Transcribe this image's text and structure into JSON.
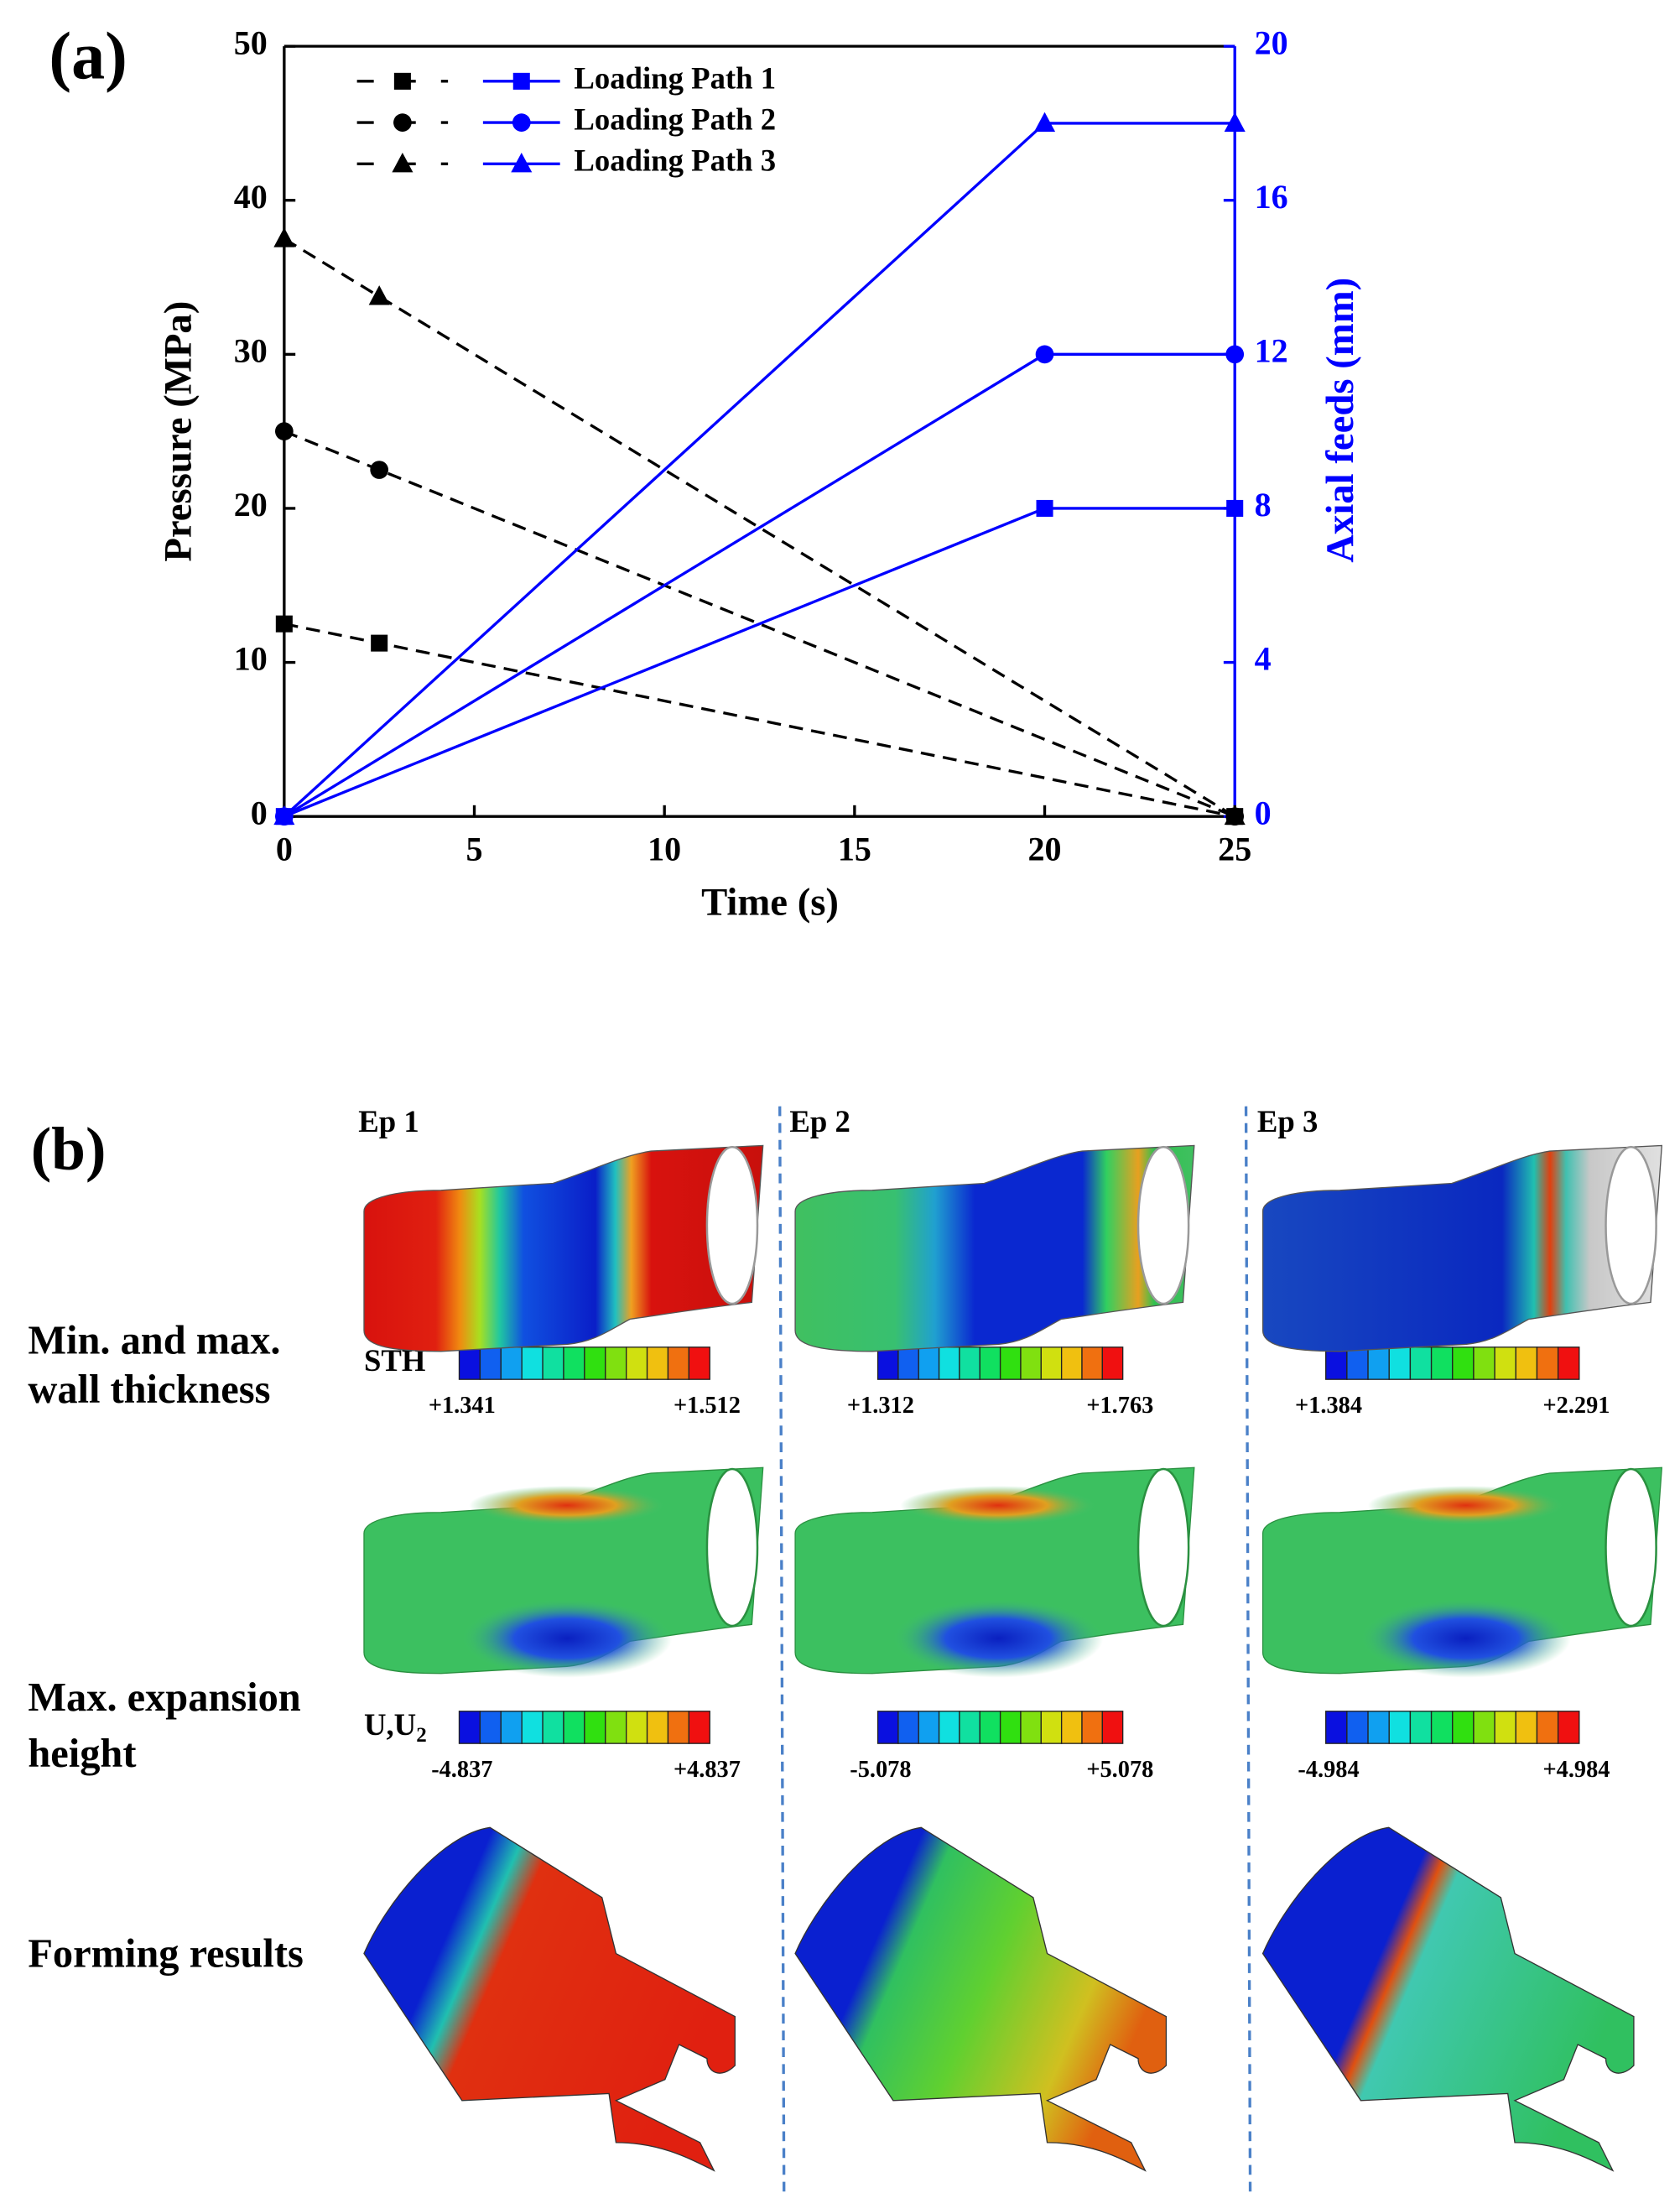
{
  "chart_data": {
    "type": "line",
    "title": "(a)",
    "xlabel": "Time (s)",
    "ylabel": "Pressure (MPa)",
    "y2label": "Axial feeds (mm)",
    "xlim": [
      0,
      25
    ],
    "xticks": [
      0,
      5,
      10,
      15,
      20,
      25
    ],
    "ylim": [
      0,
      50
    ],
    "yticks": [
      0,
      10,
      20,
      30,
      40,
      50
    ],
    "y2lim": [
      0,
      20
    ],
    "y2ticks": [
      0,
      4,
      8,
      12,
      16,
      20
    ],
    "grid": false,
    "legend": "upper left",
    "series": [
      {
        "color": "#000000",
        "line_style": "dashed",
        "marker": "square",
        "x": [
          0,
          2.5,
          25
        ],
        "values": [
          12.5,
          11.25,
          0
        ]
      },
      {
        "color": "#000000",
        "line_style": "dashed",
        "marker": "circle",
        "x": [
          0,
          2.5,
          25
        ],
        "values": [
          25,
          22.5,
          0
        ]
      },
      {
        "color": "#000000",
        "line_style": "dashed",
        "marker": "triangle",
        "x": [
          0,
          2.5,
          25
        ],
        "values": [
          37.5,
          33.75,
          0
        ]
      },
      {
        "name": "Loading Path 1",
        "color": "#0000ff",
        "line_style": "solid",
        "marker": "square",
        "axis": "y2",
        "x": [
          0,
          20,
          25
        ],
        "values": [
          0,
          8,
          8
        ]
      },
      {
        "name": "Loading Path 2",
        "color": "#0000ff",
        "line_style": "solid",
        "marker": "circle",
        "axis": "y2",
        "x": [
          0,
          20,
          25
        ],
        "values": [
          0,
          12,
          12
        ]
      },
      {
        "name": "Loading Path 3",
        "color": "#0000ff",
        "line_style": "solid",
        "marker": "triangle",
        "axis": "y2",
        "x": [
          0,
          20,
          25
        ],
        "values": [
          0,
          18,
          18
        ]
      }
    ]
  },
  "panel_b": {
    "label": "(b)",
    "columns": [
      "Ep 1",
      "Ep 2",
      "Ep 3"
    ],
    "rows": [
      {
        "label": [
          "Min. and max.",
          "wall thickness"
        ],
        "variable": {
          "text": "STH"
        },
        "ranges": [
          [
            "+1.341",
            "+1.512"
          ],
          [
            "+1.312",
            "+1.763"
          ],
          [
            "+1.384",
            "+2.291"
          ]
        ]
      },
      {
        "label": [
          "Max. expansion",
          "height"
        ],
        "variable": {
          "text": "U,U",
          "sub": "2"
        },
        "ranges": [
          [
            "-4.837",
            "+4.837"
          ],
          [
            "-5.078",
            "+5.078"
          ],
          [
            "-4.984",
            "+4.984"
          ]
        ]
      },
      {
        "label": [
          "Forming results"
        ]
      }
    ]
  }
}
